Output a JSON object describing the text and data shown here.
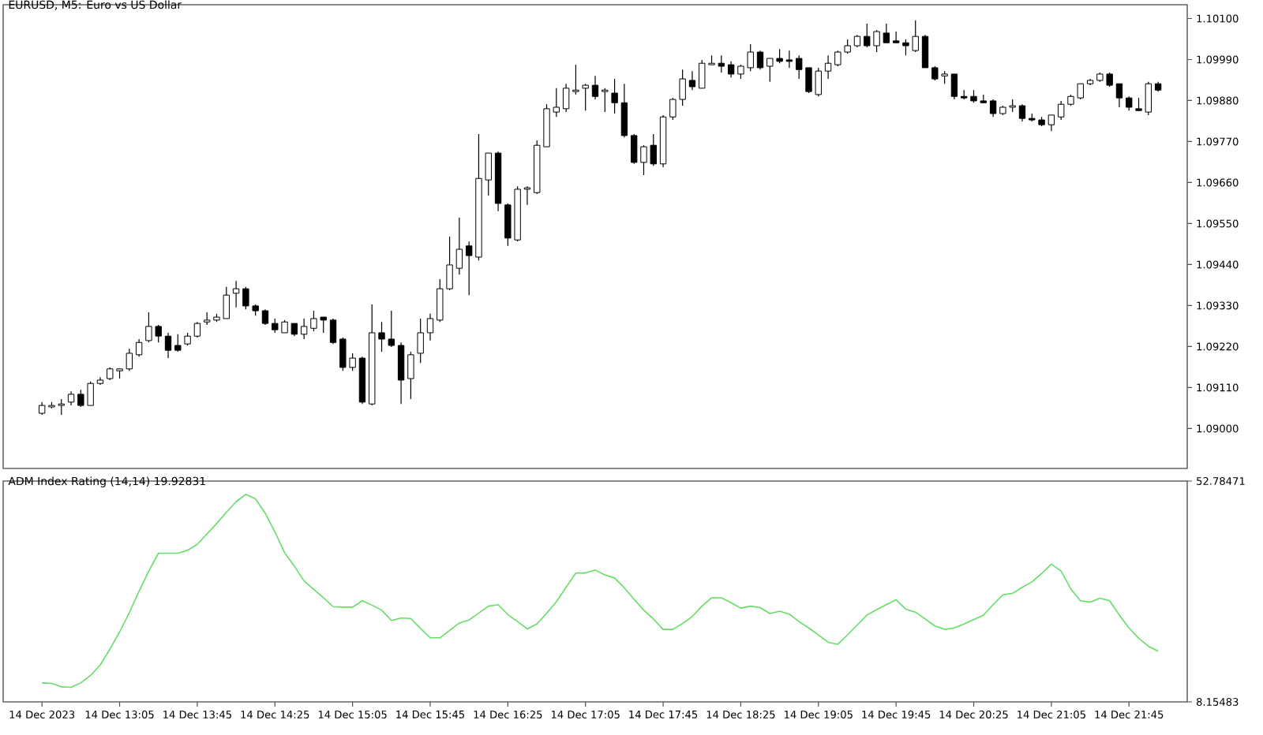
{
  "chart_data": [
    {
      "type": "candlestick",
      "title": "EURUSD, M5:  Euro vs US Dollar",
      "tick_labels": "y",
      "categories": [
        null,
        null,
        null,
        null,
        null,
        null,
        null,
        null,
        null,
        null,
        null,
        null,
        null,
        null,
        null,
        null,
        null,
        null,
        null,
        null,
        null,
        null,
        null,
        null,
        null,
        null,
        null,
        null,
        null,
        null,
        null,
        null,
        null,
        null,
        null,
        null,
        null,
        null,
        null,
        null,
        null,
        null,
        null,
        null,
        null,
        null,
        null,
        null,
        null,
        null,
        null,
        null,
        null,
        null,
        null,
        null,
        null,
        null,
        null,
        null,
        null,
        null,
        null,
        null,
        null,
        null,
        null,
        null,
        null,
        null,
        null,
        null,
        null,
        null,
        null,
        null,
        null,
        null,
        null,
        null,
        null,
        null,
        null,
        null,
        null,
        null,
        null,
        null,
        null,
        null,
        null,
        null,
        null,
        null,
        null,
        null,
        null,
        null,
        null,
        null,
        null,
        null,
        null,
        null,
        null,
        null,
        null,
        null,
        null,
        null,
        null,
        null,
        null,
        null,
        null,
        null
      ],
      "ohlc": [
        [
          1.09041,
          1.09071,
          1.09037,
          1.09062
        ],
        [
          1.09058,
          1.09071,
          1.09054,
          1.09062
        ],
        [
          1.09062,
          1.09079,
          1.09037,
          1.09066
        ],
        [
          1.09071,
          1.091,
          1.09062,
          1.09092
        ],
        [
          1.09092,
          1.09104,
          1.09058,
          1.09062
        ],
        [
          1.09062,
          1.09126,
          1.09062,
          1.09121
        ],
        [
          1.09121,
          1.09138,
          1.09117,
          1.0913
        ],
        [
          1.09134,
          1.09164,
          1.0913,
          1.0916
        ],
        [
          1.09155,
          1.0916,
          1.09134,
          1.0916
        ],
        [
          1.0916,
          1.09214,
          1.09155,
          1.09202
        ],
        [
          1.09198,
          1.0924,
          1.09193,
          1.09231
        ],
        [
          1.09236,
          1.09312,
          1.09231,
          1.09274
        ],
        [
          1.09274,
          1.09278,
          1.09231,
          1.09248
        ],
        [
          1.09248,
          1.09257,
          1.09189,
          1.0921
        ],
        [
          1.09223,
          1.09253,
          1.09206,
          1.0921
        ],
        [
          1.09227,
          1.09257,
          1.09223,
          1.09248
        ],
        [
          1.09248,
          1.09286,
          1.09244,
          1.09282
        ],
        [
          1.09286,
          1.09312,
          1.09278,
          1.09291
        ],
        [
          1.09291,
          1.09308,
          1.09286,
          1.09299
        ],
        [
          1.09295,
          1.0938,
          1.09295,
          1.09358
        ],
        [
          1.09363,
          1.09396,
          1.09325,
          1.09375
        ],
        [
          1.09375,
          1.0938,
          1.0932,
          1.09329
        ],
        [
          1.09329,
          1.09333,
          1.09303,
          1.09316
        ],
        [
          1.09316,
          1.0932,
          1.09278,
          1.09282
        ],
        [
          1.09282,
          1.09295,
          1.09257,
          1.09265
        ],
        [
          1.09257,
          1.09291,
          1.09257,
          1.09286
        ],
        [
          1.09282,
          1.09282,
          1.09248,
          1.09253
        ],
        [
          1.09253,
          1.09295,
          1.0924,
          1.09274
        ],
        [
          1.09269,
          1.09316,
          1.09261,
          1.09295
        ],
        [
          1.09299,
          1.09299,
          1.09257,
          1.09291
        ],
        [
          1.09291,
          1.09295,
          1.09227,
          1.09231
        ],
        [
          1.0924,
          1.09244,
          1.09155,
          1.09164
        ],
        [
          1.09164,
          1.09202,
          1.09155,
          1.09189
        ],
        [
          1.09189,
          1.09193,
          1.09066,
          1.09071
        ],
        [
          1.09066,
          1.09333,
          1.09062,
          1.09257
        ],
        [
          1.09257,
          1.09286,
          1.09206,
          1.0924
        ],
        [
          1.0924,
          1.09316,
          1.09219,
          1.09223
        ],
        [
          1.09223,
          1.09231,
          1.09066,
          1.0913
        ],
        [
          1.09134,
          1.09206,
          1.09079,
          1.09198
        ],
        [
          1.09202,
          1.09295,
          1.09176,
          1.09257
        ],
        [
          1.09257,
          1.09308,
          1.09236,
          1.09295
        ],
        [
          1.09291,
          1.09401,
          1.09286,
          1.09375
        ],
        [
          1.09375,
          1.09515,
          1.09371,
          1.09439
        ],
        [
          1.0943,
          1.09566,
          1.09413,
          1.09481
        ],
        [
          1.0949,
          1.09502,
          1.09358,
          1.09464
        ],
        [
          1.0946,
          1.0979,
          1.09451,
          1.09671
        ],
        [
          1.09667,
          1.09739,
          1.09625,
          1.09739
        ],
        [
          1.09739,
          1.09743,
          1.09583,
          1.09604
        ],
        [
          1.096,
          1.09604,
          1.0949,
          1.09511
        ],
        [
          1.09506,
          1.0965,
          1.09502,
          1.09642
        ],
        [
          1.09642,
          1.0965,
          1.096,
          1.09646
        ],
        [
          1.09633,
          1.09773,
          1.09629,
          1.0976
        ],
        [
          1.09756,
          1.0987,
          1.09756,
          1.09858
        ],
        [
          1.09849,
          1.09913,
          1.09836,
          1.09862
        ],
        [
          1.09858,
          1.09925,
          1.09849,
          1.09913
        ],
        [
          1.09904,
          1.09976,
          1.09896,
          1.09908
        ],
        [
          1.09913,
          1.09925,
          1.09853,
          1.09921
        ],
        [
          1.09921,
          1.09946,
          1.09883,
          1.09891
        ],
        [
          1.09904,
          1.09913,
          1.09849,
          1.09908
        ],
        [
          1.099,
          1.09938,
          1.09845,
          1.09874
        ],
        [
          1.09874,
          1.09925,
          1.09781,
          1.09786
        ],
        [
          1.09786,
          1.0979,
          1.0971,
          1.09714
        ],
        [
          1.09714,
          1.0976,
          1.0968,
          1.09756
        ],
        [
          1.0976,
          1.0979,
          1.09705,
          1.0971
        ],
        [
          1.0971,
          1.09841,
          1.09701,
          1.09836
        ],
        [
          1.09836,
          1.09887,
          1.09828,
          1.09883
        ],
        [
          1.09883,
          1.09963,
          1.09866,
          1.09938
        ],
        [
          1.09934,
          1.09959,
          1.09908,
          1.09917
        ],
        [
          1.09913,
          1.09989,
          1.09913,
          1.0998
        ],
        [
          1.09976,
          1.10001,
          1.09976,
          1.0998
        ],
        [
          1.0998,
          1.10001,
          1.09955,
          1.09972
        ],
        [
          1.09976,
          1.09985,
          1.09942,
          1.09951
        ],
        [
          1.09951,
          1.09976,
          1.09938,
          1.09972
        ],
        [
          1.09968,
          1.10031,
          1.09959,
          1.1001
        ],
        [
          1.1001,
          1.10014,
          1.09963,
          1.09968
        ],
        [
          1.09972,
          1.09993,
          1.0993,
          1.09993
        ],
        [
          1.09993,
          1.10018,
          1.0998,
          1.09985
        ],
        [
          1.09989,
          1.10014,
          1.09968,
          1.09985
        ],
        [
          1.09993,
          1.10001,
          1.09938,
          1.09963
        ],
        [
          1.09968,
          1.09968,
          1.099,
          1.09904
        ],
        [
          1.09896,
          1.09968,
          1.09891,
          1.09959
        ],
        [
          1.09959,
          1.10001,
          1.09938,
          1.0998
        ],
        [
          1.09976,
          1.10014,
          1.09972,
          1.1001
        ],
        [
          1.1001,
          1.10044,
          1.10006,
          1.10027
        ],
        [
          1.10027,
          1.10056,
          1.10023,
          1.10052
        ],
        [
          1.10052,
          1.10086,
          1.10023,
          1.10027
        ],
        [
          1.10027,
          1.10069,
          1.1001,
          1.10065
        ],
        [
          1.10061,
          1.10086,
          1.10035,
          1.10035
        ],
        [
          1.1004,
          1.10065,
          1.10035,
          1.10035
        ],
        [
          1.10035,
          1.10044,
          1.10001,
          1.10027
        ],
        [
          1.10014,
          1.10095,
          1.1001,
          1.10052
        ],
        [
          1.10052,
          1.10056,
          1.09968,
          1.09968
        ],
        [
          1.09968,
          1.09972,
          1.09934,
          1.09938
        ],
        [
          1.09946,
          1.09959,
          1.09925,
          1.09951
        ],
        [
          1.09951,
          1.09951,
          1.09883,
          1.09891
        ],
        [
          1.09891,
          1.09908,
          1.09883,
          1.09887
        ],
        [
          1.09891,
          1.09908,
          1.09874,
          1.09879
        ],
        [
          1.09879,
          1.09896,
          1.09874,
          1.09874
        ],
        [
          1.09879,
          1.09883,
          1.09836,
          1.09845
        ],
        [
          1.09845,
          1.09866,
          1.09841,
          1.09862
        ],
        [
          1.09862,
          1.09883,
          1.09849,
          1.09866
        ],
        [
          1.09866,
          1.0987,
          1.09824,
          1.09832
        ],
        [
          1.09832,
          1.09845,
          1.09824,
          1.09828
        ],
        [
          1.09828,
          1.09836,
          1.09811,
          1.09815
        ],
        [
          1.09815,
          1.09841,
          1.09798,
          1.09841
        ],
        [
          1.09836,
          1.09879,
          1.09828,
          1.0987
        ],
        [
          1.0987,
          1.09896,
          1.09866,
          1.09891
        ],
        [
          1.09887,
          1.09925,
          1.09883,
          1.09925
        ],
        [
          1.09925,
          1.09938,
          1.09921,
          1.09934
        ],
        [
          1.09934,
          1.09955,
          1.0993,
          1.09951
        ],
        [
          1.09951,
          1.09955,
          1.09917,
          1.09921
        ],
        [
          1.09925,
          1.09925,
          1.09862,
          1.09887
        ],
        [
          1.09887,
          1.09891,
          1.09853,
          1.09862
        ],
        [
          1.09858,
          1.09887,
          1.09853,
          1.09853
        ],
        [
          1.09849,
          1.0993,
          1.09841,
          1.09925
        ],
        [
          1.09925,
          1.0993,
          1.09904,
          1.09908
        ]
      ],
      "ylim": [
        1.08893,
        1.10137
      ],
      "yticks": [
        {
          "value": 1.101,
          "label": "1.10100"
        },
        {
          "value": 1.0999,
          "label": "1.09990"
        },
        {
          "value": 1.0988,
          "label": "1.09880"
        },
        {
          "value": 1.0977,
          "label": "1.09770"
        },
        {
          "value": 1.0966,
          "label": "1.09660"
        },
        {
          "value": 1.0955,
          "label": "1.09550"
        },
        {
          "value": 1.0944,
          "label": "1.09440"
        },
        {
          "value": 1.0933,
          "label": "1.09330"
        },
        {
          "value": 1.0922,
          "label": "1.09220"
        },
        {
          "value": 1.0911,
          "label": "1.09110"
        },
        {
          "value": 1.09,
          "label": "1.09000"
        }
      ]
    },
    {
      "type": "line",
      "title": "ADM Index Rating (14,14) 19.92831",
      "color": "#66dd66",
      "categories": [
        "14 Dec 2023",
        null,
        null,
        null,
        null,
        null,
        null,
        null,
        "14 Dec 13:05",
        null,
        null,
        null,
        null,
        null,
        null,
        null,
        "14 Dec 13:45",
        null,
        null,
        null,
        null,
        null,
        null,
        null,
        "14 Dec 14:25",
        null,
        null,
        null,
        null,
        null,
        null,
        null,
        "14 Dec 15:05",
        null,
        null,
        null,
        null,
        null,
        null,
        null,
        "14 Dec 15:45",
        null,
        null,
        null,
        null,
        null,
        null,
        null,
        "14 Dec 16:25",
        null,
        null,
        null,
        null,
        null,
        null,
        null,
        "14 Dec 17:05",
        null,
        null,
        null,
        null,
        null,
        null,
        null,
        "14 Dec 17:45",
        null,
        null,
        null,
        null,
        null,
        null,
        null,
        "14 Dec 18:25",
        null,
        null,
        null,
        null,
        null,
        null,
        null,
        "14 Dec 19:05",
        null,
        null,
        null,
        null,
        null,
        null,
        null,
        "14 Dec 19:45",
        null,
        null,
        null,
        null,
        null,
        null,
        null,
        "14 Dec 20:25",
        null,
        null,
        null,
        null,
        null,
        null,
        null,
        "14 Dec 21:05",
        null,
        null,
        null,
        null,
        null,
        null,
        null,
        "14 Dec 21:45",
        null,
        null,
        null
      ],
      "values": [
        12.0,
        11.9,
        11.2,
        11.1,
        12.0,
        13.5,
        15.6,
        18.8,
        22.3,
        26.2,
        30.5,
        34.6,
        38.2,
        38.2,
        38.2,
        38.8,
        40.0,
        42.1,
        44.2,
        46.5,
        48.6,
        50.1,
        49.2,
        46.3,
        42.5,
        38.3,
        35.6,
        32.6,
        30.9,
        29.2,
        27.4,
        27.3,
        27.3,
        28.6,
        27.7,
        26.7,
        24.6,
        25.1,
        25.0,
        23.0,
        21.1,
        21.1,
        22.6,
        24.1,
        24.7,
        26.1,
        27.5,
        27.8,
        25.8,
        24.4,
        22.9,
        23.9,
        26.1,
        28.4,
        31.3,
        34.2,
        34.2,
        34.8,
        33.8,
        33.2,
        31.2,
        28.9,
        26.7,
        24.9,
        22.8,
        22.8,
        24.0,
        25.4,
        27.5,
        29.2,
        29.2,
        28.2,
        27.1,
        27.5,
        27.2,
        26.0,
        26.5,
        25.9,
        24.4,
        23.1,
        21.7,
        20.2,
        19.8,
        21.7,
        23.7,
        25.7,
        26.8,
        27.8,
        28.8,
        26.9,
        26.3,
        24.9,
        23.5,
        22.8,
        23.1,
        23.9,
        24.8,
        25.7,
        27.8,
        29.8,
        30.1,
        31.3,
        32.4,
        34.1,
        36.0,
        34.6,
        31.0,
        28.6,
        28.3,
        29.1,
        28.6,
        25.7,
        23.1,
        21.0,
        19.4,
        18.4
      ],
      "ylim": [
        8.15483,
        52.78471
      ],
      "yticks": [
        8.15483,
        52.78471
      ]
    }
  ]
}
